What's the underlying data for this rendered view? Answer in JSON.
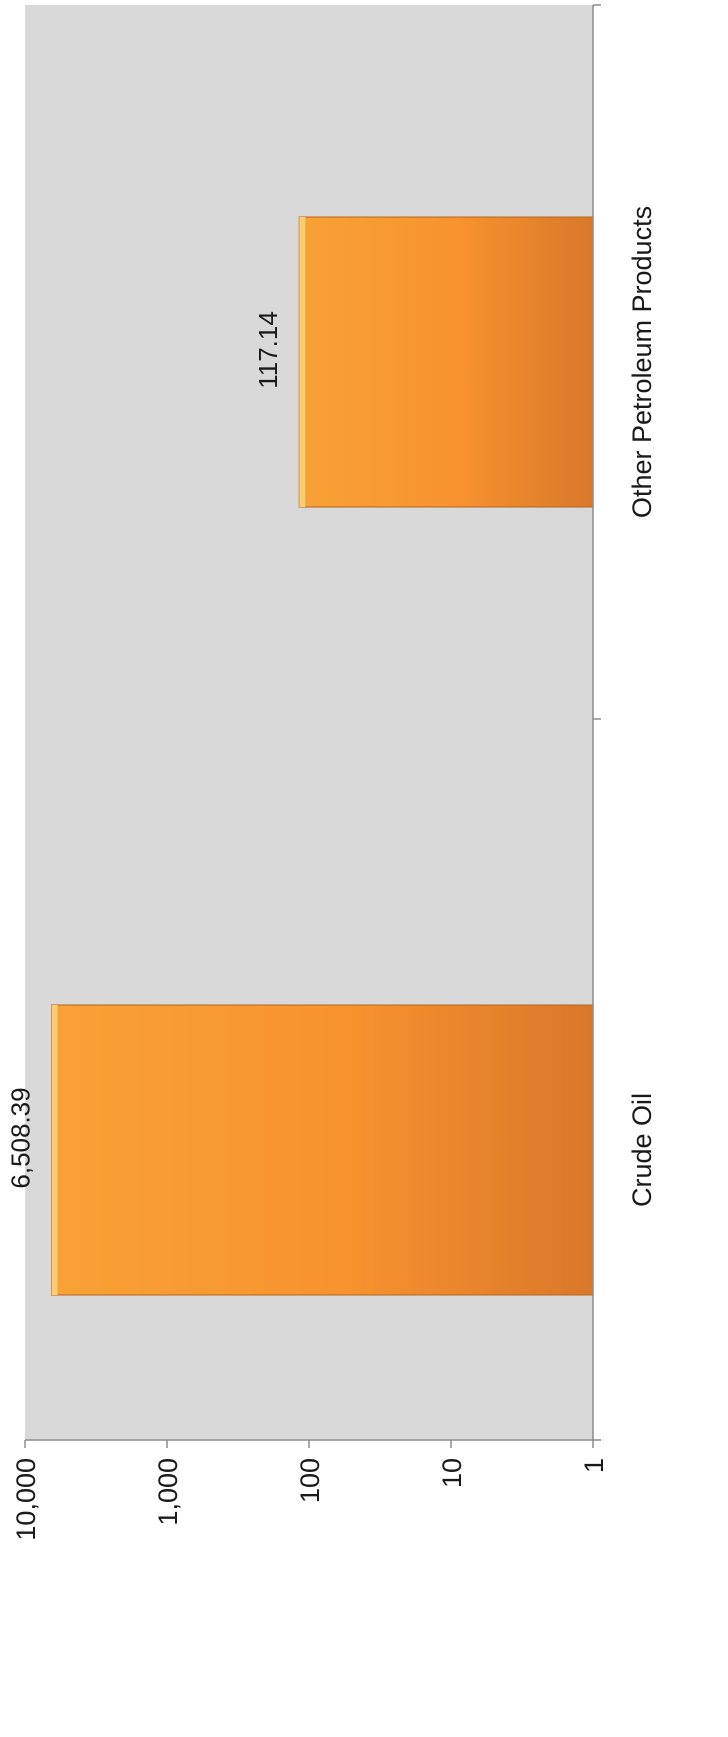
{
  "chart_data": {
    "type": "bar",
    "orientation": "rotated-90-clockwise",
    "scale": "log",
    "categories": [
      "Crude Oil",
      "Other Petroleum Products"
    ],
    "values": [
      6508.39,
      117.14
    ],
    "data_labels": [
      "6,508.39",
      "117.14"
    ],
    "ylim": [
      1,
      10000
    ],
    "ticks": [
      {
        "value": 1,
        "label": "1"
      },
      {
        "value": 10,
        "label": "10"
      },
      {
        "value": 100,
        "label": "100"
      },
      {
        "value": 1000,
        "label": "1,000"
      },
      {
        "value": 10000,
        "label": "10,000"
      }
    ],
    "title": "",
    "xlabel": "",
    "ylabel": "",
    "grid": false,
    "legend": "none",
    "colors": {
      "plot_background": "#d9d9d9",
      "bar_light": "#f8a236",
      "bar_mid": "#f7922e",
      "bar_dark": "#d9782a",
      "bar_highlight": "#fbd27a",
      "axis": "#8c8c8c"
    }
  }
}
